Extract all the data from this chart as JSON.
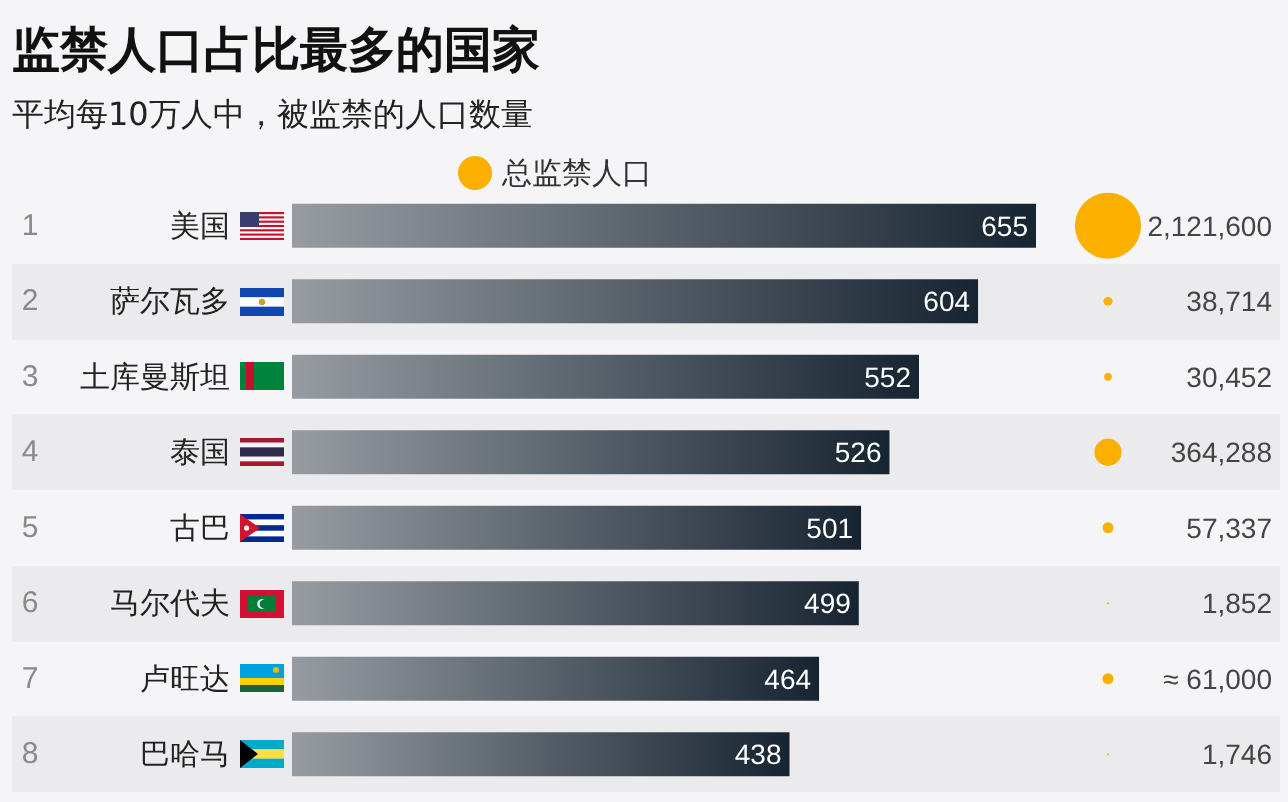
{
  "chart_data": [
    {
      "type": "bar",
      "orientation": "horizontal",
      "title": "监禁人口占比最多的国家",
      "subtitle": "平均每10万人中，被监禁的人口数量",
      "categories": [
        "美国",
        "萨尔瓦多",
        "土库曼斯坦",
        "泰国",
        "古巴",
        "马尔代夫",
        "卢旺达",
        "巴哈马"
      ],
      "values": [
        655,
        604,
        552,
        526,
        501,
        499,
        464,
        438
      ],
      "color": "#172431",
      "data_labels": true,
      "tick_labels": "y",
      "annotations": [
        "1",
        "2",
        "3",
        "4",
        "5",
        "6",
        "7",
        "8"
      ]
    },
    {
      "type": "other",
      "legend": "top",
      "series": [
        {
          "name": "总监禁人口",
          "type": "bubble",
          "color": "#fbb000",
          "values": [
            2121600,
            38714,
            30452,
            364288,
            57337,
            1852,
            61000,
            1746
          ],
          "value_labels": [
            "2,121,600",
            "38,714",
            "30,452",
            "364,288",
            "57,337",
            "1,852",
            "≈ 61,000",
            "1,746"
          ]
        }
      ]
    }
  ]
}
